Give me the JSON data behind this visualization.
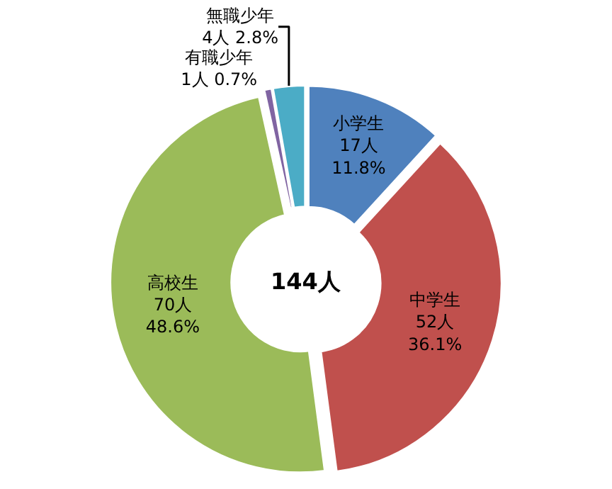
{
  "chart_data": {
    "type": "donut",
    "categories": [
      "小学生",
      "中学生",
      "高校生",
      "有職少年",
      "無職少年"
    ],
    "values": [
      17,
      52,
      70,
      1,
      4
    ],
    "colors": [
      "#4f81bd",
      "#c0504d",
      "#9bbb59",
      "#8064a2",
      "#4bacc6"
    ],
    "value_labels": [
      "17人\n11.8%",
      "52人\n36.1%",
      "70人\n48.6%",
      "1人 0.7%",
      "4人 2.8%"
    ],
    "annotations": [
      "144人"
    ],
    "legend": false
  }
}
